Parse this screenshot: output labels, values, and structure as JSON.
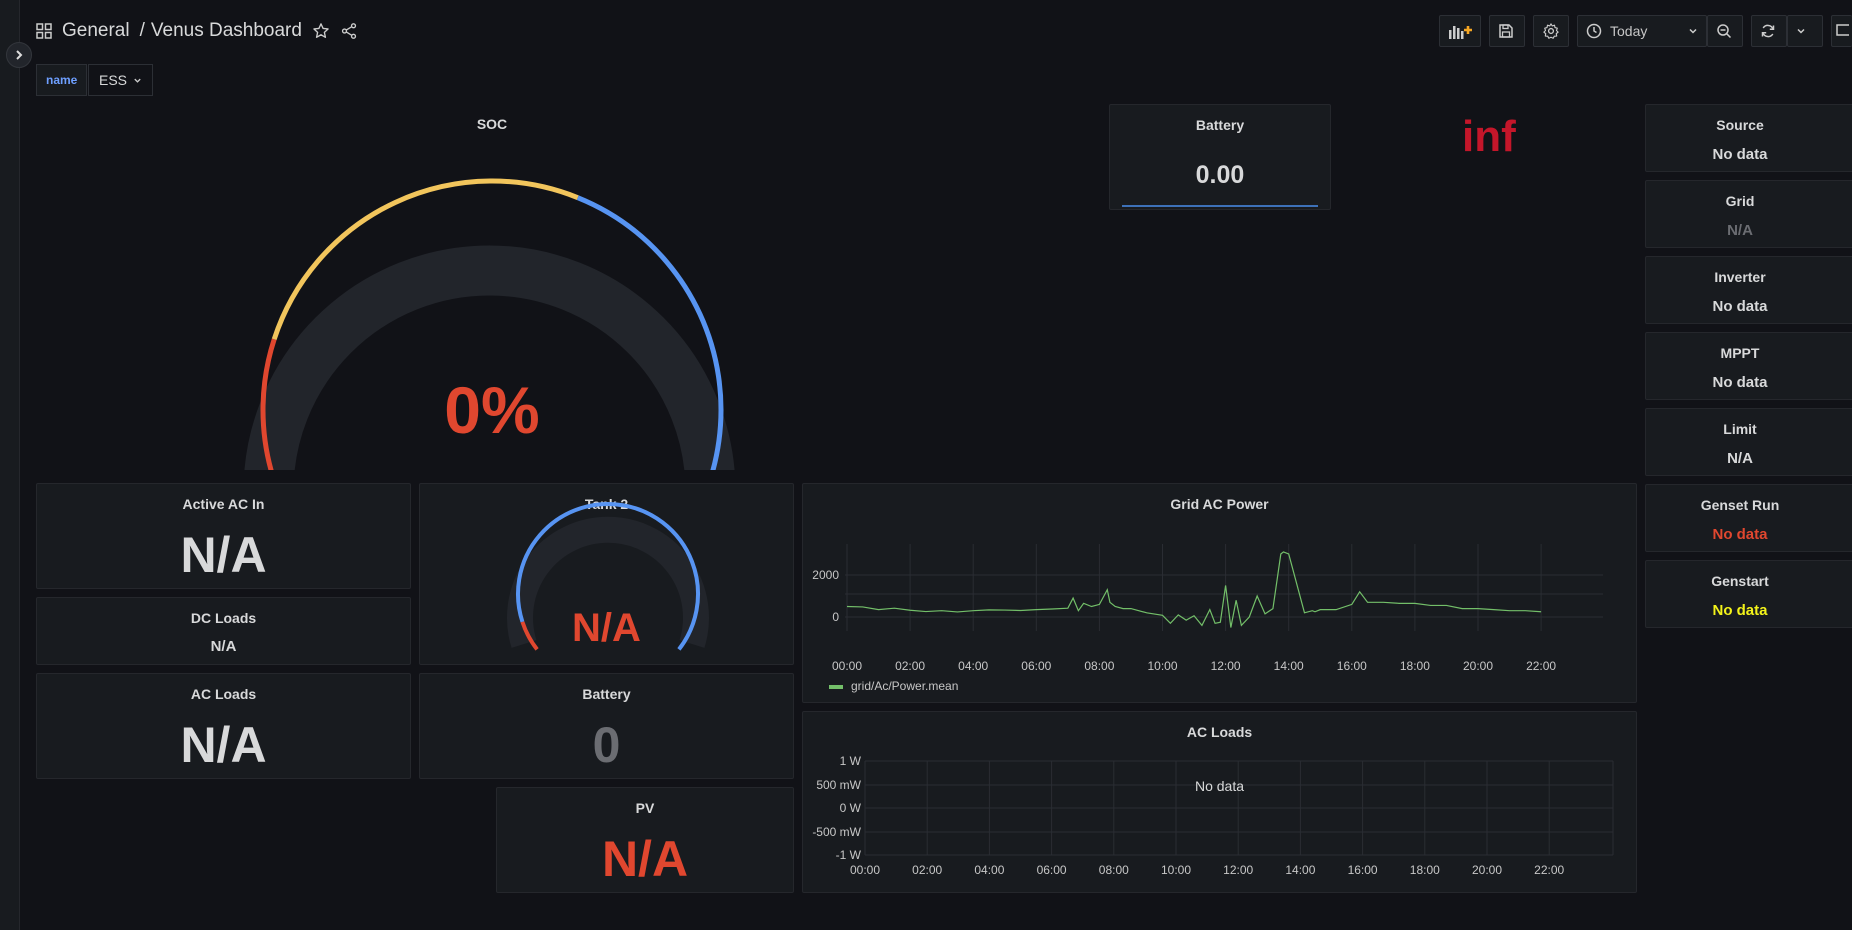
{
  "header": {
    "folder": "General",
    "separator": "/",
    "dashboard": "Venus Dashboard",
    "time_range": "Today"
  },
  "variables": {
    "label": "name",
    "value": "ESS"
  },
  "soc": {
    "title": "SOC",
    "value": "0%",
    "level_percent": 0
  },
  "battery_top": {
    "title": "Battery",
    "value": "0.00"
  },
  "inf_text": "inf",
  "side_stats": [
    {
      "title": "Source",
      "value": "No data",
      "color": "#d8d9da"
    },
    {
      "title": "Grid",
      "value": "N/A",
      "color": "#6b6d72"
    },
    {
      "title": "Inverter",
      "value": "No data",
      "color": "#d8d9da"
    },
    {
      "title": "MPPT",
      "value": "No data",
      "color": "#d8d9da"
    },
    {
      "title": "Limit",
      "value": "N/A",
      "color": "#d8d9da"
    },
    {
      "title": "Genset Run",
      "value": "No data",
      "color": "#e0472f"
    },
    {
      "title": "Genstart",
      "value": "No data",
      "color": "#f3f31a"
    }
  ],
  "active_ac_in": {
    "title": "Active AC In",
    "value": "N/A"
  },
  "dc_loads": {
    "title": "DC Loads",
    "value": "N/A"
  },
  "ac_loads_stat": {
    "title": "AC Loads",
    "value": "N/A"
  },
  "tank2": {
    "title": "Tank 2",
    "value": "N/A"
  },
  "battery_mid": {
    "title": "Battery",
    "value": "0"
  },
  "pv": {
    "title": "PV",
    "value": "N/A"
  },
  "colors": {
    "red": "#e0472f",
    "yellow": "#f2c55c",
    "blue": "#5794f2",
    "green": "#73bf69"
  },
  "grid_chart": {
    "title": "Grid AC Power",
    "legend": "grid/Ac/Power.mean",
    "x_ticks": [
      "00:00",
      "02:00",
      "04:00",
      "06:00",
      "08:00",
      "10:00",
      "12:00",
      "14:00",
      "16:00",
      "18:00",
      "20:00",
      "22:00"
    ],
    "y_ticks": [
      "2000",
      "0"
    ]
  },
  "ac_loads_chart": {
    "title": "AC Loads",
    "no_data": "No data",
    "x_ticks": [
      "00:00",
      "02:00",
      "04:00",
      "06:00",
      "08:00",
      "10:00",
      "12:00",
      "14:00",
      "16:00",
      "18:00",
      "20:00",
      "22:00"
    ],
    "y_ticks": [
      "1 W",
      "500 mW",
      "0 W",
      "-500 mW",
      "-1 W"
    ]
  },
  "chart_data": {
    "type": "line",
    "title": "Grid AC Power",
    "xlabel": "",
    "ylabel": "",
    "series": [
      {
        "name": "grid/Ac/Power.mean",
        "x": [
          "00:00",
          "00:30",
          "01:00",
          "01:30",
          "02:00",
          "02:30",
          "03:00",
          "03:30",
          "04:00",
          "04:30",
          "05:00",
          "05:30",
          "06:00",
          "06:30",
          "07:00",
          "07:10",
          "07:20",
          "07:30",
          "07:45",
          "08:00",
          "08:15",
          "08:20",
          "08:30",
          "08:45",
          "09:00",
          "09:30",
          "10:00",
          "10:15",
          "10:30",
          "10:45",
          "11:00",
          "11:15",
          "11:30",
          "11:40",
          "11:50",
          "12:00",
          "12:10",
          "12:20",
          "12:30",
          "12:45",
          "13:00",
          "13:15",
          "13:30",
          "13:45",
          "13:50",
          "14:00",
          "14:30",
          "14:45",
          "14:50",
          "15:00",
          "15:30",
          "16:00",
          "16:15",
          "16:30",
          "17:00",
          "17:30",
          "18:00",
          "18:30",
          "19:00",
          "19:30",
          "20:00",
          "20:30",
          "21:00",
          "21:30",
          "22:00"
        ],
        "values": [
          500,
          480,
          350,
          420,
          320,
          260,
          300,
          240,
          300,
          340,
          330,
          310,
          350,
          380,
          420,
          900,
          300,
          650,
          500,
          600,
          1300,
          700,
          500,
          400,
          400,
          200,
          80,
          -300,
          100,
          -150,
          60,
          -400,
          350,
          -300,
          -250,
          1500,
          -500,
          800,
          -400,
          0,
          1000,
          150,
          400,
          3000,
          3100,
          3000,
          200,
          300,
          250,
          350,
          350,
          600,
          1200,
          700,
          700,
          650,
          650,
          550,
          550,
          400,
          400,
          350,
          300,
          300,
          250
        ]
      }
    ],
    "x_range": [
      "00:00",
      "24:00"
    ],
    "y_ticks": [
      0,
      2000
    ],
    "grid": true,
    "legend": "bottom-left"
  }
}
